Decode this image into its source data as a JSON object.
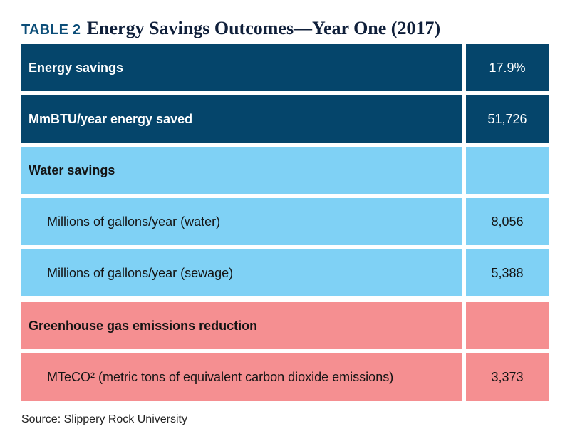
{
  "title": {
    "label": "TABLE 2",
    "text": "Energy Savings Outcomes—Year One (2017)"
  },
  "rows": [
    {
      "label": "Energy savings",
      "value": "17.9%"
    },
    {
      "label": "MmBTU/year energy saved",
      "value": "51,726"
    },
    {
      "label": "Water savings",
      "value": ""
    },
    {
      "label": "Millions of gallons/year (water)",
      "value": "8,056"
    },
    {
      "label": "Millions of gallons/year (sewage)",
      "value": "5,388"
    },
    {
      "label": "Greenhouse gas emissions reduction",
      "value": ""
    },
    {
      "label": "MTeCO² (metric tons of equivalent carbon dioxide emissions)",
      "value": "3,373"
    }
  ],
  "colors": {
    "dark_blue": "#05456b",
    "light_blue": "#7fd1f5",
    "salmon": "#f58f91"
  },
  "source": "Source: Slippery Rock University"
}
